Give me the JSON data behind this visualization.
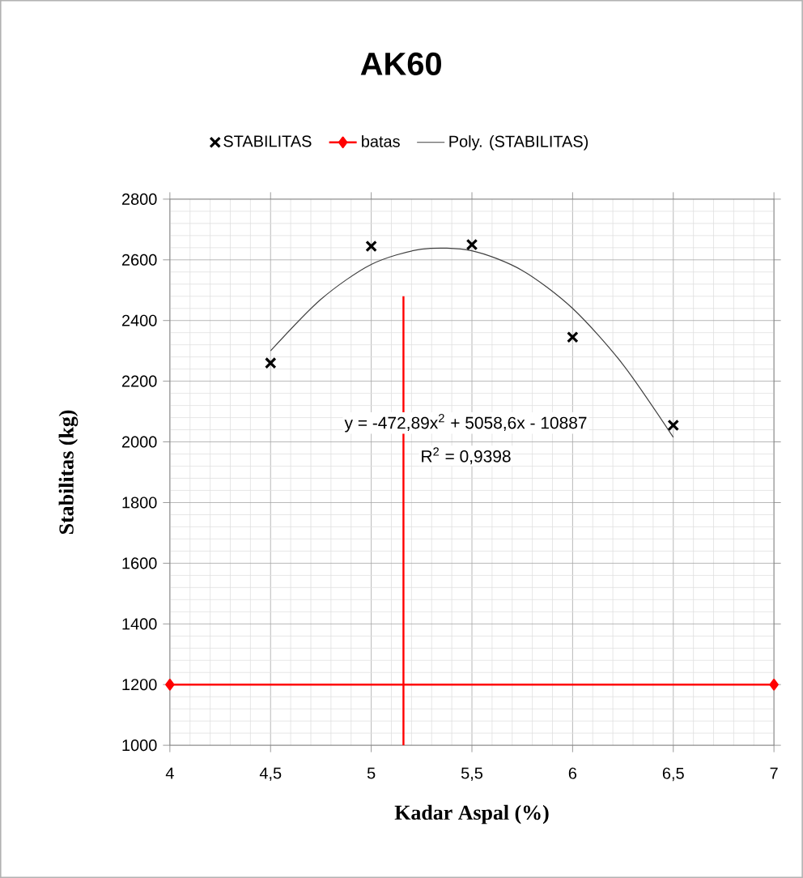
{
  "chart_data": {
    "type": "scatter",
    "title": "AK60",
    "xlabel": "Kadar Aspal (%)",
    "ylabel": "Stabilitas (kg)",
    "xlim": [
      4,
      7
    ],
    "ylim": [
      1000,
      2800
    ],
    "xticks": [
      4,
      {
        "value": 4.5,
        "label": "4,5"
      },
      5,
      {
        "value": 5.5,
        "label": "5,5"
      },
      6,
      {
        "value": 6.5,
        "label": "6,5"
      },
      7
    ],
    "yticks": [
      1000,
      1200,
      1400,
      1600,
      1800,
      2000,
      2200,
      2400,
      2600,
      2800
    ],
    "grid": true,
    "legend": "top",
    "series": [
      {
        "name": "STABILITAS",
        "marker": "cross",
        "color": "#000000",
        "x": [
          4.5,
          5,
          5.5,
          6,
          6.5
        ],
        "values": [
          2260,
          2645,
          2650,
          2345,
          2055
        ]
      },
      {
        "name": "batas",
        "type": "line",
        "marker": "diamond",
        "color": "#ff0000",
        "x": [
          4,
          7
        ],
        "values": [
          1200,
          1200
        ]
      },
      {
        "name": "Poly. (STABILITAS)",
        "type": "line",
        "marker": "none",
        "color": "#404040",
        "x": [
          4.5,
          4.75,
          5,
          5.25,
          5.5,
          5.75,
          6,
          6.25,
          6.5
        ],
        "values": [
          2300,
          2470,
          2585,
          2635,
          2630,
          2565,
          2440,
          2255,
          2015
        ]
      },
      {
        "type": "line",
        "marker": "none",
        "color": "#ff0000",
        "x": [
          5.16,
          5.16
        ],
        "values": [
          1000,
          2480
        ]
      }
    ],
    "annotations": [
      "y = -472,89x$^{2}$ + 5058,6x - 10887",
      "R$^{2}$ = 0,9398"
    ]
  }
}
